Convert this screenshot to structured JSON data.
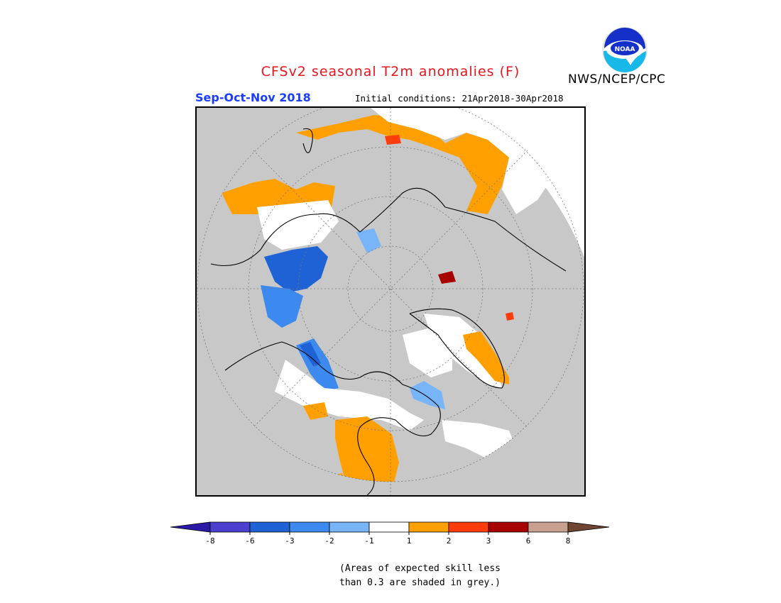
{
  "header": {
    "title": "CFSv2 seasonal T2m anomalies (F)",
    "agency": "NWS/NCEP/CPC",
    "logo_text": "NOAA",
    "season": "Sep-Oct-Nov 2018",
    "initial_conditions": "Initial conditions: 21Apr2018-30Apr2018"
  },
  "legend": {
    "colors": [
      "#2a1aa6",
      "#4b3fd0",
      "#1e62d6",
      "#3c8af0",
      "#78b4f8",
      "#ffffff",
      "#ffa000",
      "#ff3c0a",
      "#a80000",
      "#c8a090",
      "#6e4632"
    ],
    "ticks": [
      "-8",
      "-6",
      "-3",
      "-2",
      "-1",
      "1",
      "2",
      "3",
      "6",
      "8"
    ]
  },
  "footnote": {
    "line1": "(Areas of expected skill less",
    "line2": "than 0.3 are shaded in grey.)"
  },
  "map": {
    "projection": "north-polar-stereographic",
    "background_color": "#c8c8c8",
    "regions": [
      {
        "name": "europe-orange-band",
        "color": "#ffa000"
      },
      {
        "name": "europe-white-band",
        "color": "#ffffff"
      },
      {
        "name": "russia-blue-area",
        "color": "#1e62d6"
      },
      {
        "name": "siberia-light-blue",
        "color": "#3c8af0"
      },
      {
        "name": "alaska-blue",
        "color": "#3c8af0"
      },
      {
        "name": "canada-white",
        "color": "#ffffff"
      },
      {
        "name": "us-orange",
        "color": "#ffa000"
      },
      {
        "name": "greenland-orange",
        "color": "#ffa000"
      },
      {
        "name": "north-africa-orange",
        "color": "#ffa000"
      }
    ]
  }
}
